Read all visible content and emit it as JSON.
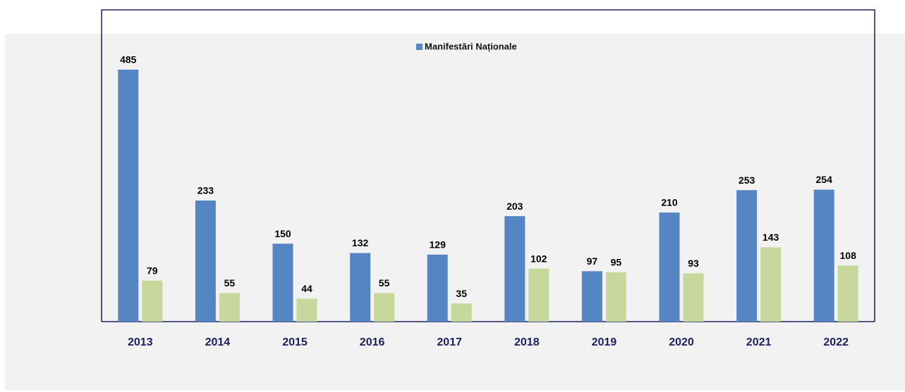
{
  "chart_data": {
    "type": "bar",
    "categories": [
      "2013",
      "2014",
      "2015",
      "2016",
      "2017",
      "2018",
      "2019",
      "2020",
      "2021",
      "2022"
    ],
    "series": [
      {
        "name": "Manifestări Naționale",
        "color": "#5585c2",
        "values": [
          485,
          233,
          150,
          132,
          129,
          203,
          97,
          210,
          253,
          254
        ]
      },
      {
        "color": "#c6d89c",
        "values": [
          79,
          55,
          44,
          55,
          35,
          102,
          95,
          93,
          143,
          108
        ]
      }
    ],
    "ylim": [
      0,
      600
    ],
    "legend": "top"
  }
}
